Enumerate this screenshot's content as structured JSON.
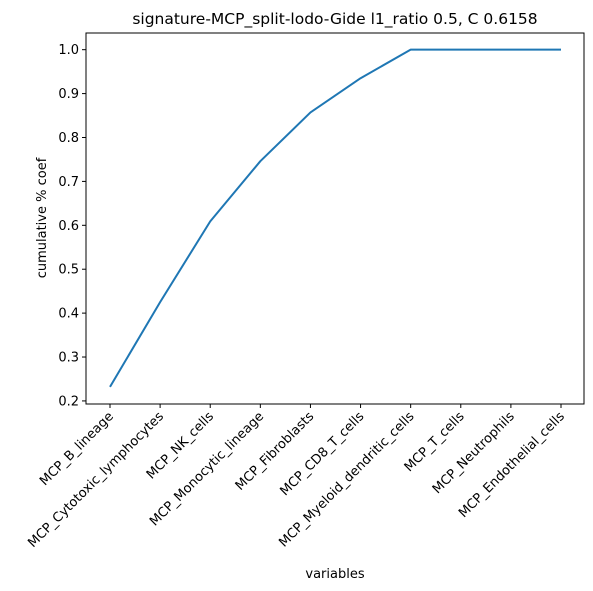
{
  "chart_data": {
    "type": "line",
    "title": "signature-MCP_split-lodo-Gide l1_ratio 0.5, C 0.6158",
    "xlabel": "variables",
    "ylabel": "cumulative % coef",
    "categories": [
      "MCP_B_lineage",
      "MCP_Cytotoxic_lymphocytes",
      "MCP_NK_cells",
      "MCP_Monocytic_lineage",
      "MCP_Fibroblasts",
      "MCP_CD8_T_cells",
      "MCP_Myeloid_dendritic_cells",
      "MCP_T_cells",
      "MCP_Neutrophils",
      "MCP_Endothelial_cells"
    ],
    "series": [
      {
        "values": [
          0.232,
          0.425,
          0.609,
          0.746,
          0.857,
          0.935,
          1.0,
          1.0,
          1.0,
          1.0
        ],
        "color": "#1f77b4"
      }
    ],
    "yticks": [
      "0.2",
      "0.3",
      "0.4",
      "0.5",
      "0.6",
      "0.7",
      "0.8",
      "0.9",
      "1.0"
    ],
    "ylim": [
      0.193,
      1.038
    ],
    "grid": false
  }
}
